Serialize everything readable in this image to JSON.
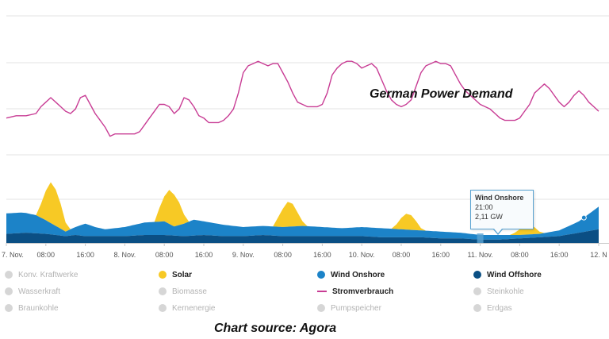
{
  "annotations": {
    "demand_title": "German  Power Demand",
    "source_note": "Chart source: Agora"
  },
  "tooltip": {
    "series": "Wind Onshore",
    "time": "21:00",
    "value": "2,11 GW"
  },
  "colors": {
    "solar": "#f7c925",
    "wind_onshore": "#1c83c8",
    "wind_offshore": "#0b4f84",
    "stromverbrauch": "#c83c94",
    "grid": "#e3e3e3",
    "inactive": "#d6d6d6"
  },
  "legend": [
    {
      "label": "Konv. Kraftwerke",
      "active": false,
      "marker": "dot",
      "color": "#d6d6d6"
    },
    {
      "label": "Solar",
      "active": true,
      "marker": "dot",
      "color": "#f7c925"
    },
    {
      "label": "Wind Onshore",
      "active": true,
      "marker": "dot",
      "color": "#1c83c8"
    },
    {
      "label": "Wind Offshore",
      "active": true,
      "marker": "dot",
      "color": "#0b4f84"
    },
    {
      "label": "Wasserkraft",
      "active": false,
      "marker": "dot",
      "color": "#d6d6d6"
    },
    {
      "label": "Biomasse",
      "active": false,
      "marker": "dot",
      "color": "#d6d6d6"
    },
    {
      "label": "Stromverbrauch",
      "active": true,
      "marker": "line",
      "color": "#c83c94"
    },
    {
      "label": "Steinkohle",
      "active": false,
      "marker": "dot",
      "color": "#d6d6d6"
    },
    {
      "label": "Braunkohle",
      "active": false,
      "marker": "dot",
      "color": "#d6d6d6"
    },
    {
      "label": "Kernenergie",
      "active": false,
      "marker": "dot",
      "color": "#d6d6d6"
    },
    {
      "label": "Pumpspeicher",
      "active": false,
      "marker": "dot",
      "color": "#d6d6d6"
    },
    {
      "label": "Erdgas",
      "active": false,
      "marker": "dot",
      "color": "#d6d6d6"
    }
  ],
  "chart_data": {
    "type": "area",
    "x_unit": "hours from 7. Nov. 00:00",
    "xlim": [
      0,
      120
    ],
    "ylim": [
      0,
      100
    ],
    "grid": true,
    "x_ticks": [
      {
        "x": 0,
        "label": "7. Nov."
      },
      {
        "x": 8,
        "label": "08:00"
      },
      {
        "x": 16,
        "label": "16:00"
      },
      {
        "x": 24,
        "label": "8. Nov."
      },
      {
        "x": 32,
        "label": "08:00"
      },
      {
        "x": 40,
        "label": "16:00"
      },
      {
        "x": 48,
        "label": "9. Nov."
      },
      {
        "x": 56,
        "label": "08:00"
      },
      {
        "x": 64,
        "label": "16:00"
      },
      {
        "x": 72,
        "label": "10. Nov."
      },
      {
        "x": 80,
        "label": "08:00"
      },
      {
        "x": 88,
        "label": "16:00"
      },
      {
        "x": 96,
        "label": "11. Nov."
      },
      {
        "x": 104,
        "label": "08:00"
      },
      {
        "x": 112,
        "label": "16:00"
      },
      {
        "x": 120,
        "label": "12. N"
      }
    ],
    "series": [
      {
        "name": "Wind Offshore",
        "x": [
          0,
          4,
          8,
          10,
          12,
          14,
          16,
          20,
          24,
          28,
          32,
          36,
          40,
          44,
          48,
          52,
          56,
          60,
          64,
          68,
          72,
          76,
          80,
          84,
          88,
          92,
          96,
          100,
          104,
          108,
          112,
          116,
          120
        ],
        "values": [
          4,
          4.5,
          4,
          3.5,
          3,
          3.5,
          3,
          3,
          3,
          3.5,
          3.5,
          3,
          3.5,
          3,
          3,
          3.5,
          3,
          3,
          3,
          3,
          3,
          2.5,
          2.5,
          2.5,
          2,
          2,
          1.5,
          1.5,
          2,
          2.5,
          3,
          4.5,
          6
        ]
      },
      {
        "name": "Wind Onshore",
        "x": [
          0,
          3,
          6,
          8,
          10,
          12,
          14,
          16,
          18,
          20,
          22,
          24,
          28,
          32,
          34,
          36,
          38,
          40,
          44,
          48,
          52,
          56,
          60,
          64,
          68,
          72,
          76,
          80,
          84,
          88,
          92,
          96,
          98,
          100,
          104,
          108,
          112,
          116,
          120
        ],
        "values": [
          9,
          9,
          8,
          6,
          4,
          2,
          3.5,
          5.5,
          4,
          3,
          3.5,
          4,
          5.5,
          6,
          4,
          5.5,
          7,
          6,
          5,
          4,
          4,
          4,
          4.5,
          4,
          3.5,
          4,
          4,
          3.5,
          3,
          3,
          2.5,
          2,
          2,
          2,
          1.5,
          1.5,
          2.5,
          5,
          10
        ]
      },
      {
        "name": "Solar",
        "x": [
          0,
          6,
          7,
          8,
          9,
          10,
          11,
          12,
          13,
          14,
          24,
          30,
          31,
          32,
          33,
          34,
          35,
          36,
          37,
          38,
          48,
          54,
          55,
          56,
          57,
          58,
          59,
          60,
          61,
          62,
          72,
          78,
          79,
          80,
          81,
          82,
          83,
          84,
          85,
          86,
          96,
          102,
          103,
          104,
          105,
          106,
          107,
          108,
          109,
          110,
          120
        ],
        "values": [
          0,
          0,
          6,
          13,
          18,
          16,
          11,
          4,
          0,
          0,
          0,
          0,
          6,
          11,
          15,
          14,
          10,
          4,
          0,
          0,
          0,
          0,
          4,
          8,
          11,
          10,
          6,
          2,
          0,
          0,
          0,
          0,
          2,
          5,
          7,
          6.5,
          4,
          1,
          0,
          0,
          0,
          0,
          1,
          2.5,
          4,
          4.5,
          3,
          1,
          0,
          0,
          0
        ]
      },
      {
        "name": "Stromverbrauch",
        "x": [
          0,
          2,
          4,
          6,
          7,
          8,
          9,
          10,
          11,
          12,
          13,
          14,
          15,
          16,
          17,
          18,
          19,
          20,
          21,
          22,
          23,
          24,
          25,
          26,
          27,
          28,
          29,
          30,
          31,
          32,
          33,
          34,
          35,
          36,
          37,
          38,
          39,
          40,
          41,
          42,
          43,
          44,
          45,
          46,
          47,
          48,
          49,
          50,
          51,
          52,
          53,
          54,
          55,
          56,
          57,
          58,
          59,
          60,
          61,
          62,
          63,
          64,
          65,
          66,
          67,
          68,
          69,
          70,
          71,
          72,
          73,
          74,
          75,
          76,
          77,
          78,
          79,
          80,
          81,
          82,
          83,
          84,
          85,
          86,
          87,
          88,
          89,
          90,
          91,
          92,
          93,
          94,
          95,
          96,
          97,
          98,
          99,
          100,
          101,
          102,
          103,
          104,
          105,
          106,
          107,
          108,
          109,
          110,
          111,
          112,
          113,
          114,
          115,
          116,
          117,
          118,
          119,
          120
        ],
        "values": [
          55,
          56,
          56,
          57,
          60,
          62,
          64,
          62,
          60,
          58,
          57,
          59,
          64,
          65,
          61,
          57,
          54,
          51,
          47,
          48,
          48,
          48,
          48,
          48,
          49,
          52,
          55,
          58,
          61,
          61,
          60,
          57,
          59,
          64,
          63,
          60,
          56,
          55,
          53,
          53,
          53,
          54,
          56,
          59,
          66,
          75,
          78,
          79,
          80,
          79,
          78,
          79,
          79,
          75,
          71,
          66,
          62,
          61,
          60,
          60,
          60,
          61,
          66,
          74,
          77,
          79,
          80,
          80,
          79,
          77,
          78,
          79,
          77,
          72,
          67,
          63,
          61,
          60,
          61,
          63,
          69,
          75,
          78,
          79,
          80,
          79,
          79,
          78,
          74,
          70,
          67,
          65,
          63,
          61,
          60,
          59,
          57,
          55,
          54,
          54,
          54,
          55,
          58,
          61,
          66,
          68,
          70,
          68,
          65,
          62,
          60,
          62,
          65,
          67,
          65,
          62,
          60,
          58
        ]
      }
    ]
  }
}
